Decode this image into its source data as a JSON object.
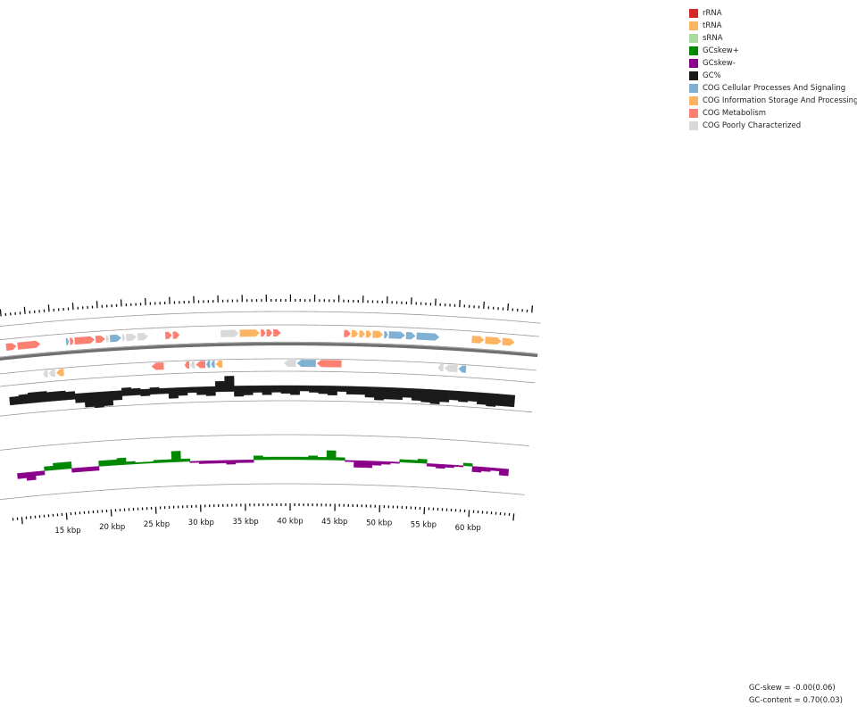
{
  "legend": [
    {
      "label": "rRNA",
      "color": "#d62728"
    },
    {
      "label": "tRNA",
      "color": "#fdb462"
    },
    {
      "label": "sRNA",
      "color": "#a9dba0"
    },
    {
      "label": "GCskew+",
      "color": "#008800"
    },
    {
      "label": "GCskew-",
      "color": "#8b008b"
    },
    {
      "label": "GC%",
      "color": "#1a1a1a"
    },
    {
      "label": "COG Cellular Processes And Signaling",
      "color": "#80b1d3"
    },
    {
      "label": "COG Information Storage And Processing",
      "color": "#fdb462"
    },
    {
      "label": "COG Metabolism",
      "color": "#fb8072"
    },
    {
      "label": "COG Poorly Characterized",
      "color": "#d9d9d9"
    }
  ],
  "stats": {
    "gc_skew": "GC-skew = -0.00(0.06)",
    "gc_content": "GC-content = 0.70(0.03)"
  },
  "axis": {
    "unit": "kbp",
    "ticks": [
      {
        "kbp": 15,
        "label": "15 kbp"
      },
      {
        "kbp": 20,
        "label": "20 kbp"
      },
      {
        "kbp": 25,
        "label": "25 kbp"
      },
      {
        "kbp": 30,
        "label": "30 kbp"
      },
      {
        "kbp": 35,
        "label": "35 kbp"
      },
      {
        "kbp": 40,
        "label": "40 kbp"
      },
      {
        "kbp": 45,
        "label": "45 kbp"
      },
      {
        "kbp": 50,
        "label": "50 kbp"
      },
      {
        "kbp": 55,
        "label": "55 kbp"
      },
      {
        "kbp": 60,
        "label": "60 kbp"
      }
    ],
    "visible_range_kbp": [
      10,
      63.5
    ]
  },
  "features": [
    {
      "strand": 1,
      "start": 10.2,
      "end": 11.3,
      "cog": "COG Metabolism"
    },
    {
      "strand": 1,
      "start": 11.4,
      "end": 13.8,
      "cog": "COG Metabolism"
    },
    {
      "strand": 1,
      "start": 16.5,
      "end": 16.8,
      "cog": "COG Cellular Processes And Signaling"
    },
    {
      "strand": 1,
      "start": 16.9,
      "end": 17.3,
      "cog": "COG Metabolism"
    },
    {
      "strand": 1,
      "start": 17.4,
      "end": 19.5,
      "cog": "COG Metabolism"
    },
    {
      "strand": 1,
      "start": 19.6,
      "end": 20.6,
      "cog": "COG Metabolism"
    },
    {
      "strand": 1,
      "start": 20.7,
      "end": 21.0,
      "cog": "COG Poorly Characterized"
    },
    {
      "strand": 1,
      "start": 21.1,
      "end": 22.3,
      "cog": "COG Cellular Processes And Signaling"
    },
    {
      "strand": 1,
      "start": 22.4,
      "end": 22.7,
      "cog": "COG Poorly Characterized"
    },
    {
      "strand": 1,
      "start": 22.8,
      "end": 23.9,
      "cog": "COG Poorly Characterized"
    },
    {
      "strand": 1,
      "start": 24.0,
      "end": 25.1,
      "cog": "COG Poorly Characterized"
    },
    {
      "strand": 1,
      "start": 26.9,
      "end": 27.6,
      "cog": "COG Metabolism"
    },
    {
      "strand": 1,
      "start": 27.7,
      "end": 28.4,
      "cog": "COG Metabolism"
    },
    {
      "strand": 1,
      "start": 32.7,
      "end": 34.6,
      "cog": "COG Poorly Characterized"
    },
    {
      "strand": 1,
      "start": 34.7,
      "end": 36.8,
      "cog": "COG Information Storage And Processing"
    },
    {
      "strand": 1,
      "start": 36.9,
      "end": 37.4,
      "cog": "COG Metabolism"
    },
    {
      "strand": 1,
      "start": 37.5,
      "end": 38.1,
      "cog": "COG Metabolism"
    },
    {
      "strand": 1,
      "start": 38.2,
      "end": 39.0,
      "cog": "COG Metabolism"
    },
    {
      "strand": 1,
      "start": 45.6,
      "end": 46.3,
      "cog": "COG Metabolism"
    },
    {
      "strand": 1,
      "start": 46.4,
      "end": 47.1,
      "cog": "COG Information Storage And Processing"
    },
    {
      "strand": 1,
      "start": 47.2,
      "end": 47.8,
      "cog": "COG Information Storage And Processing"
    },
    {
      "strand": 1,
      "start": 47.9,
      "end": 48.5,
      "cog": "COG Information Storage And Processing"
    },
    {
      "strand": 1,
      "start": 48.6,
      "end": 49.7,
      "cog": "COG Information Storage And Processing"
    },
    {
      "strand": 1,
      "start": 49.8,
      "end": 50.2,
      "cog": "COG Cellular Processes And Signaling"
    },
    {
      "strand": 1,
      "start": 50.3,
      "end": 52.0,
      "cog": "COG Cellular Processes And Signaling"
    },
    {
      "strand": 1,
      "start": 52.1,
      "end": 53.1,
      "cog": "COG Cellular Processes And Signaling"
    },
    {
      "strand": 1,
      "start": 53.2,
      "end": 55.6,
      "cog": "COG Cellular Processes And Signaling"
    },
    {
      "strand": 1,
      "start": 59.0,
      "end": 60.3,
      "cog": "COG Information Storage And Processing"
    },
    {
      "strand": 1,
      "start": 60.4,
      "end": 62.1,
      "cog": "COG Information Storage And Processing"
    },
    {
      "strand": 1,
      "start": 62.2,
      "end": 63.5,
      "cog": "COG Information Storage And Processing"
    },
    {
      "strand": -1,
      "start": 13.8,
      "end": 14.3,
      "cog": "COG Poorly Characterized"
    },
    {
      "strand": -1,
      "start": 14.4,
      "end": 15.1,
      "cog": "COG Poorly Characterized"
    },
    {
      "strand": -1,
      "start": 15.2,
      "end": 16.0,
      "cog": "COG Information Storage And Processing"
    },
    {
      "strand": -1,
      "start": 25.3,
      "end": 26.6,
      "cog": "COG Metabolism"
    },
    {
      "strand": -1,
      "start": 28.8,
      "end": 29.3,
      "cog": "COG Metabolism"
    },
    {
      "strand": -1,
      "start": 29.4,
      "end": 29.9,
      "cog": "COG Poorly Characterized"
    },
    {
      "strand": -1,
      "start": 30.0,
      "end": 31.0,
      "cog": "COG Metabolism"
    },
    {
      "strand": -1,
      "start": 31.1,
      "end": 31.5,
      "cog": "COG Cellular Processes And Signaling"
    },
    {
      "strand": -1,
      "start": 31.6,
      "end": 32.0,
      "cog": "COG Cellular Processes And Signaling"
    },
    {
      "strand": -1,
      "start": 32.1,
      "end": 32.8,
      "cog": "COG Information Storage And Processing"
    },
    {
      "strand": -1,
      "start": 39.3,
      "end": 40.6,
      "cog": "COG Poorly Characterized"
    },
    {
      "strand": -1,
      "start": 40.7,
      "end": 42.7,
      "cog": "COG Cellular Processes And Signaling"
    },
    {
      "strand": -1,
      "start": 42.8,
      "end": 45.4,
      "cog": "COG Metabolism"
    },
    {
      "strand": -1,
      "start": 55.6,
      "end": 56.2,
      "cog": "COG Poorly Characterized"
    },
    {
      "strand": -1,
      "start": 56.3,
      "end": 57.7,
      "cog": "COG Poorly Characterized"
    },
    {
      "strand": -1,
      "start": 57.8,
      "end": 58.6,
      "cog": "COG Cellular Processes And Signaling"
    }
  ],
  "gc_percent": {
    "x_kbp": [
      10,
      11,
      12,
      13,
      14,
      15,
      16,
      17,
      18,
      19,
      20,
      21,
      22,
      23,
      24,
      25,
      26,
      27,
      28,
      29,
      30,
      31,
      32,
      33,
      34,
      35,
      36,
      37,
      38,
      39,
      40,
      41,
      42,
      43,
      44,
      45,
      46,
      47,
      48,
      49,
      50,
      51,
      52,
      53,
      54,
      55,
      56,
      57,
      58,
      59,
      60,
      61,
      62,
      63
    ],
    "values": [
      0.02,
      0.03,
      0.04,
      0.04,
      0.03,
      0.03,
      0.02,
      -0.03,
      -0.07,
      -0.08,
      -0.07,
      -0.03,
      0.02,
      0.01,
      -0.01,
      0.01,
      0.0,
      -0.04,
      -0.02,
      0.0,
      -0.02,
      -0.03,
      0.04,
      0.08,
      -0.04,
      -0.03,
      -0.01,
      -0.03,
      -0.01,
      -0.02,
      -0.03,
      0.0,
      -0.01,
      -0.02,
      -0.03,
      0.0,
      -0.02,
      -0.02,
      -0.04,
      -0.06,
      -0.05,
      -0.05,
      -0.03,
      -0.05,
      -0.06,
      -0.07,
      -0.05,
      -0.03,
      -0.04,
      -0.03,
      -0.05,
      -0.06,
      -0.05,
      -0.05
    ]
  },
  "gc_skew": {
    "x_kbp": [
      10,
      11,
      12,
      13,
      14,
      15,
      16,
      17,
      18,
      19,
      20,
      21,
      22,
      23,
      24,
      25,
      26,
      27,
      28,
      29,
      30,
      31,
      32,
      33,
      34,
      35,
      36,
      37,
      38,
      39,
      40,
      41,
      42,
      43,
      44,
      45,
      46,
      47,
      48,
      49,
      50,
      51,
      52,
      53,
      54,
      55,
      56,
      57,
      58,
      59,
      60,
      61,
      62,
      63
    ],
    "values": [
      -0.04,
      -0.06,
      -0.03,
      0.03,
      0.05,
      0.05,
      -0.03,
      -0.03,
      -0.03,
      0.04,
      0.04,
      0.05,
      0.02,
      0.01,
      0.01,
      0.02,
      0.02,
      0.08,
      0.02,
      -0.01,
      -0.02,
      -0.02,
      -0.02,
      -0.03,
      -0.02,
      -0.02,
      0.03,
      0.02,
      0.02,
      0.02,
      0.02,
      0.02,
      0.03,
      0.02,
      0.07,
      0.02,
      -0.01,
      -0.05,
      -0.05,
      -0.03,
      -0.02,
      -0.01,
      0.02,
      0.02,
      0.03,
      -0.02,
      -0.03,
      -0.02,
      -0.01,
      0.02,
      -0.04,
      -0.03,
      -0.02,
      -0.05
    ]
  }
}
